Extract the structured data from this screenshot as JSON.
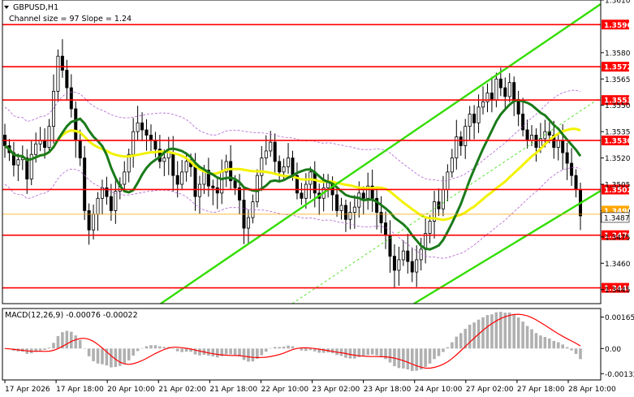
{
  "header": {
    "symbol_label": "GBPUSD,H1",
    "channel_label": "Channel size = 97 Slope = 1.24"
  },
  "macd": {
    "label": "MACD(12,26,9) -0.00076 -0.00022",
    "ticks": [
      {
        "value": 0.00165,
        "label": "0.00165"
      },
      {
        "value": 0.0,
        "label": "0.00"
      },
      {
        "value": -0.00132,
        "label": "-0.00132"
      }
    ],
    "ylim": [
      -0.00165,
      0.0021
    ]
  },
  "colors": {
    "background": "#ffffff",
    "candle": "#000000",
    "level_line": "#ff0000",
    "level_label_bg": "#ff0000",
    "channel": "#33dd00",
    "ma_fast": "#1a7a1a",
    "ma_slow": "#f2f200",
    "envelope": "#b060d0",
    "macd_hist": "#b0b0b0",
    "macd_signal": "#ff0000",
    "current_price_line": "#ffa500"
  },
  "chart_data": {
    "type": "candlestick",
    "symbol": "GBPUSD",
    "timeframe": "H1",
    "ylim": [
      1.3437,
      1.361
    ],
    "y_ticks": [
      "1.3610",
      "1.3580",
      "1.3565",
      "1.3550",
      "1.3535",
      "1.3520",
      "1.3505",
      "1.3490",
      "1.3475",
      "1.3460",
      "1.3445"
    ],
    "x_ticks": [
      "17 Apr 2026",
      "17 Apr 18:00",
      "20 Apr 10:00",
      "21 Apr 02:00",
      "21 Apr 18:00",
      "22 Apr 10:00",
      "23 Apr 02:00",
      "23 Apr 18:00",
      "24 Apr 10:00",
      "27 Apr 02:00",
      "27 Apr 18:00",
      "28 Apr 10:00"
    ],
    "levels": [
      "1.3596",
      "1.3572",
      "1.3553",
      "1.3530",
      "1.3502",
      "1.3476",
      "1.3446"
    ],
    "current_price": "1.3487",
    "hidden_price": "1.3490",
    "closes": [
      1.3527,
      1.3523,
      1.3516,
      1.3519,
      1.352,
      1.3508,
      1.3522,
      1.3528,
      1.353,
      1.3526,
      1.3538,
      1.3558,
      1.3578,
      1.357,
      1.356,
      1.3548,
      1.353,
      1.352,
      1.349,
      1.3479,
      1.3488,
      1.3497,
      1.3503,
      1.3498,
      1.349,
      1.3501,
      1.3505,
      1.3512,
      1.3522,
      1.3535,
      1.354,
      1.3536,
      1.3533,
      1.353,
      1.3525,
      1.3518,
      1.352,
      1.3523,
      1.351,
      1.3505,
      1.3512,
      1.3518,
      1.3515,
      1.3498,
      1.3505,
      1.3513,
      1.3504,
      1.3503,
      1.35,
      1.3512,
      1.3518,
      1.3507,
      1.3503,
      1.3496,
      1.348,
      1.3486,
      1.3495,
      1.351,
      1.352,
      1.3524,
      1.3529,
      1.3518,
      1.3512,
      1.3515,
      1.352,
      1.351,
      1.35,
      1.3497,
      1.3505,
      1.3512,
      1.35,
      1.3497,
      1.3503,
      1.3506,
      1.3499,
      1.349,
      1.3493,
      1.3485,
      1.3489,
      1.3492,
      1.35,
      1.3497,
      1.3504,
      1.3497,
      1.3489,
      1.3483,
      1.3476,
      1.3464,
      1.3456,
      1.3462,
      1.3467,
      1.3461,
      1.3455,
      1.3462,
      1.3468,
      1.3477,
      1.3484,
      1.3495,
      1.3491,
      1.3502,
      1.3512,
      1.352,
      1.3532,
      1.3527,
      1.3538,
      1.3545,
      1.354,
      1.3549,
      1.3552,
      1.3557,
      1.3553,
      1.3565,
      1.356,
      1.3555,
      1.3563,
      1.3552,
      1.3545,
      1.3536,
      1.353,
      1.3533,
      1.3526,
      1.3531,
      1.3535,
      1.3533,
      1.3526,
      1.353,
      1.3523,
      1.3517,
      1.351,
      1.3502,
      1.3487
    ]
  }
}
